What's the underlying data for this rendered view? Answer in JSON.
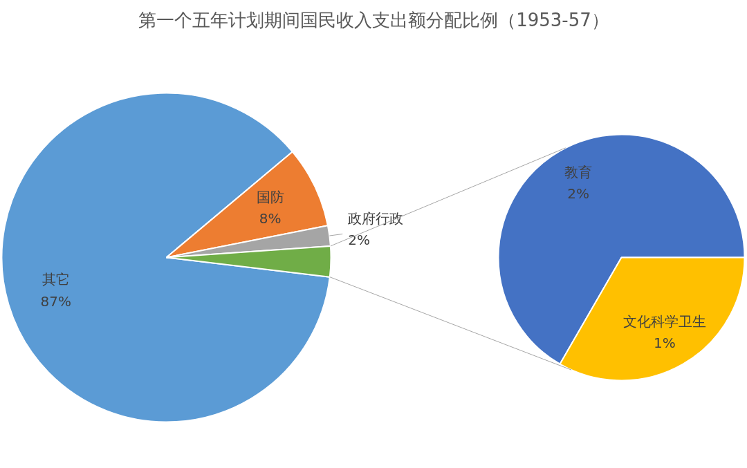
{
  "chart_data": [
    {
      "type": "pie",
      "title": "第一个五年计划期间国民收入支出额分配比例（1953-57）",
      "categories": [
        "其它",
        "国防",
        "政府行政",
        null
      ],
      "values": [
        87,
        8,
        2,
        3
      ],
      "colors": [
        "#5b9bd5",
        "#ed7d31",
        "#a5a5a5",
        "#70ad47"
      ],
      "value_labels": [
        "87%",
        "8%",
        "2%",
        null
      ]
    },
    {
      "type": "pie",
      "categories": [
        "教育",
        "文化科学卫生"
      ],
      "values": [
        2,
        1
      ],
      "colors": [
        "#4472c4",
        "#ffc000"
      ],
      "value_labels": [
        "2%",
        "1%"
      ]
    }
  ]
}
